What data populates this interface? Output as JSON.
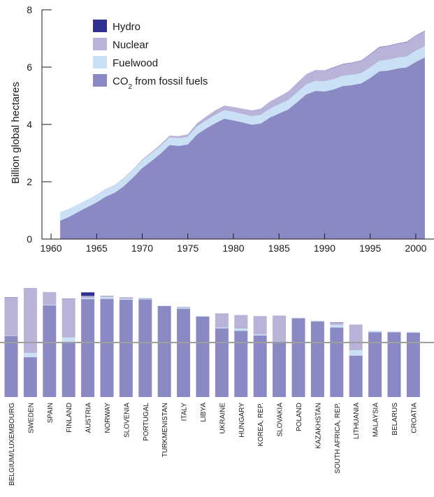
{
  "colors": {
    "co2": "#8a89c4",
    "fuelwood": "#c9e0f5",
    "nuclear": "#b8b3d9",
    "hydro": "#2e3192",
    "axis": "#1a1a1a",
    "refline": "#9e9e9e"
  },
  "chart_data": [
    {
      "type": "area",
      "stacked": true,
      "ylabel": "Billion global hectares",
      "xlabel": "",
      "xlim": [
        1959,
        2002
      ],
      "ylim": [
        0,
        8
      ],
      "xticks": [
        1960,
        1965,
        1970,
        1975,
        1980,
        1985,
        1990,
        1995,
        2000
      ],
      "yticks": [
        0,
        2,
        4,
        6,
        8
      ],
      "legend_position": "top-left",
      "legend": [
        {
          "key": "hydro",
          "label_main": "Hydro",
          "label_sub": ""
        },
        {
          "key": "nuclear",
          "label_main": "Nuclear",
          "label_sub": ""
        },
        {
          "key": "fuelwood",
          "label_main": "Fuelwood",
          "label_sub": ""
        },
        {
          "key": "co2",
          "label_main": "CO",
          "label_sub": "2",
          "label_rest": " from fossil fuels"
        }
      ],
      "x": [
        1961,
        1962,
        1963,
        1964,
        1965,
        1966,
        1967,
        1968,
        1969,
        1970,
        1971,
        1972,
        1973,
        1974,
        1975,
        1976,
        1977,
        1978,
        1979,
        1980,
        1981,
        1982,
        1983,
        1984,
        1985,
        1986,
        1987,
        1988,
        1989,
        1990,
        1991,
        1992,
        1993,
        1994,
        1995,
        1996,
        1997,
        1998,
        1999,
        2000,
        2001
      ],
      "series": [
        {
          "key": "co2",
          "values": [
            0.64,
            0.78,
            0.95,
            1.12,
            1.28,
            1.48,
            1.62,
            1.85,
            2.15,
            2.48,
            2.72,
            2.98,
            3.28,
            3.25,
            3.3,
            3.65,
            3.86,
            4.04,
            4.2,
            4.14,
            4.07,
            3.99,
            4.03,
            4.24,
            4.38,
            4.52,
            4.78,
            5.05,
            5.17,
            5.15,
            5.22,
            5.34,
            5.37,
            5.43,
            5.62,
            5.85,
            5.88,
            5.95,
            5.99,
            6.18,
            6.34
          ]
        },
        {
          "key": "fuelwood",
          "values": [
            0.3,
            0.28,
            0.27,
            0.26,
            0.26,
            0.26,
            0.26,
            0.27,
            0.27,
            0.27,
            0.27,
            0.27,
            0.27,
            0.27,
            0.27,
            0.28,
            0.28,
            0.29,
            0.3,
            0.3,
            0.3,
            0.3,
            0.3,
            0.31,
            0.32,
            0.33,
            0.34,
            0.35,
            0.35,
            0.36,
            0.36,
            0.36,
            0.36,
            0.36,
            0.37,
            0.37,
            0.38,
            0.38,
            0.38,
            0.39,
            0.39
          ]
        },
        {
          "key": "nuclear",
          "values": [
            0.0,
            0.0,
            0.0,
            0.0,
            0.01,
            0.01,
            0.01,
            0.02,
            0.02,
            0.03,
            0.04,
            0.05,
            0.06,
            0.07,
            0.09,
            0.11,
            0.13,
            0.16,
            0.16,
            0.17,
            0.18,
            0.2,
            0.22,
            0.25,
            0.27,
            0.3,
            0.33,
            0.36,
            0.38,
            0.38,
            0.4,
            0.4,
            0.42,
            0.43,
            0.45,
            0.47,
            0.48,
            0.49,
            0.5,
            0.52,
            0.53
          ]
        },
        {
          "key": "hydro",
          "values": [
            0.0,
            0.0,
            0.0,
            0.0,
            0.0,
            0.0,
            0.0,
            0.0,
            0.0,
            0.0,
            0.0,
            0.0,
            0.0,
            0.0,
            0.0,
            0.0,
            0.0,
            0.0,
            0.0,
            0.0,
            0.0,
            0.0,
            0.0,
            0.0,
            0.0,
            0.0,
            0.0,
            0.0,
            0.0,
            0.0,
            0.01,
            0.01,
            0.01,
            0.01,
            0.01,
            0.01,
            0.01,
            0.01,
            0.01,
            0.01,
            0.01
          ]
        }
      ]
    },
    {
      "type": "bar",
      "stacked": true,
      "reference_line": 2.0,
      "ylim_assumed": [
        0,
        5
      ],
      "categories": [
        "BELGIUM/LUXEMBOURG",
        "SWEDEN",
        "SPAIN",
        "FINLAND",
        "AUSTRIA",
        "NORWAY",
        "SLOVENIA",
        "PORTUGAL",
        "TURKMENISTAN",
        "ITALY",
        "LIBYA",
        "UKRAINE",
        "HUNGARY",
        "KOREA, REP.",
        "SLOVAKIA",
        "POLAND",
        "KAZAKHSTAN",
        "SOUTH AFRICA, REP.",
        "LITHUANIA",
        "MALAYSIA",
        "BELARUS",
        "CROATIA"
      ],
      "series": [
        {
          "key": "co2",
          "values": [
            2.23,
            1.46,
            3.36,
            1.98,
            3.59,
            3.6,
            3.57,
            3.58,
            3.34,
            3.24,
            2.95,
            2.52,
            2.43,
            2.26,
            1.98,
            2.89,
            2.77,
            2.55,
            1.52,
            2.38,
            2.38,
            2.36
          ]
        },
        {
          "key": "fuelwood",
          "values": [
            0.01,
            0.16,
            0.02,
            0.21,
            0.04,
            0.07,
            0.03,
            0.03,
            0.01,
            0.04,
            0.02,
            0.03,
            0.08,
            0.04,
            0.03,
            0.02,
            0.03,
            0.1,
            0.2,
            0.05,
            0.02,
            0.03
          ]
        },
        {
          "key": "nuclear",
          "values": [
            1.41,
            2.38,
            0.47,
            1.41,
            0.08,
            0.05,
            0.06,
            0.0,
            0.0,
            0.03,
            0.0,
            0.52,
            0.5,
            0.67,
            0.98,
            0.0,
            0.0,
            0.08,
            0.94,
            0.0,
            0.0,
            0.0
          ]
        },
        {
          "key": "hydro",
          "values": [
            0.01,
            0.0,
            0.0,
            0.01,
            0.13,
            0.0,
            0.0,
            0.01,
            0.0,
            0.0,
            0.0,
            0.0,
            0.0,
            0.0,
            0.0,
            0.0,
            0.0,
            0.01,
            0.0,
            0.0,
            0.0,
            0.0
          ]
        }
      ]
    }
  ]
}
